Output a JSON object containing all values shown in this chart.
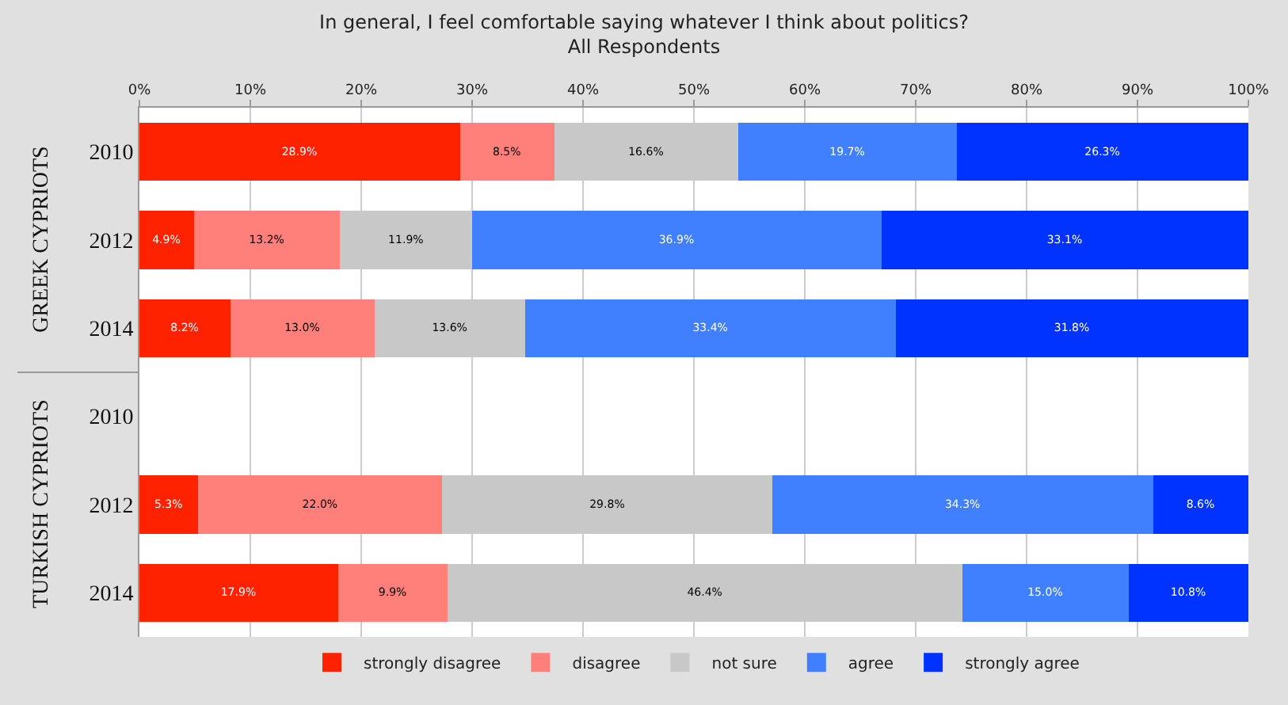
{
  "chart_data": {
    "type": "bar",
    "orientation": "horizontal",
    "stacked": true,
    "title": "In general, I feel comfortable saying whatever I think about politics?",
    "subtitle": "All Respondents",
    "categories": [
      "2010",
      "2012",
      "2014",
      "2010",
      "2012",
      "2014"
    ],
    "series": [
      {
        "name": "strongly disagree",
        "color": "#ff2200",
        "values": [
          28.9,
          4.9,
          8.2,
          null,
          5.3,
          17.9
        ],
        "value_labels": [
          "28.9%",
          "4.9%",
          "8.2%",
          null,
          "5.3%",
          "17.9%"
        ]
      },
      {
        "name": "disagree",
        "color": "#ff7f7a",
        "values": [
          8.5,
          13.2,
          13.0,
          null,
          22.0,
          9.9
        ],
        "value_labels": [
          "8.5%",
          "13.2%",
          "13.0%",
          null,
          "22.0%",
          "9.9%"
        ]
      },
      {
        "name": "not sure",
        "color": "#c8c8c8",
        "values": [
          16.6,
          11.9,
          13.6,
          null,
          29.8,
          46.4
        ],
        "value_labels": [
          "16.6%",
          "11.9%",
          "13.6%",
          null,
          "29.8%",
          "46.4%"
        ]
      },
      {
        "name": "agree",
        "color": "#4080ff",
        "values": [
          19.7,
          36.9,
          33.4,
          null,
          34.3,
          15.0
        ],
        "value_labels": [
          "19.7%",
          "36.9%",
          "33.4%",
          null,
          "34.3%",
          "15.0%"
        ]
      },
      {
        "name": "strongly agree",
        "color": "#0033ff",
        "values": [
          26.3,
          33.1,
          31.8,
          null,
          8.6,
          10.8
        ],
        "value_labels": [
          "26.3%",
          "33.1%",
          "31.8%",
          null,
          "8.6%",
          "10.8%"
        ]
      }
    ],
    "xlim": [
      0,
      100
    ],
    "xticks": [
      {
        "value": 0,
        "label": "0%"
      },
      {
        "value": 10,
        "label": "10%"
      },
      {
        "value": 20,
        "label": "20%"
      },
      {
        "value": 30,
        "label": "30%"
      },
      {
        "value": 40,
        "label": "40%"
      },
      {
        "value": 50,
        "label": "50%"
      },
      {
        "value": 60,
        "label": "60%"
      },
      {
        "value": 70,
        "label": "70%"
      },
      {
        "value": 80,
        "label": "80%"
      },
      {
        "value": 90,
        "label": "90%"
      },
      {
        "value": 100,
        "label": "100%"
      }
    ],
    "annotations": [
      "GREEK CYPRIOTS",
      "TURKISH CYPRIOTS"
    ],
    "grid": "x",
    "legend": "bottom"
  }
}
